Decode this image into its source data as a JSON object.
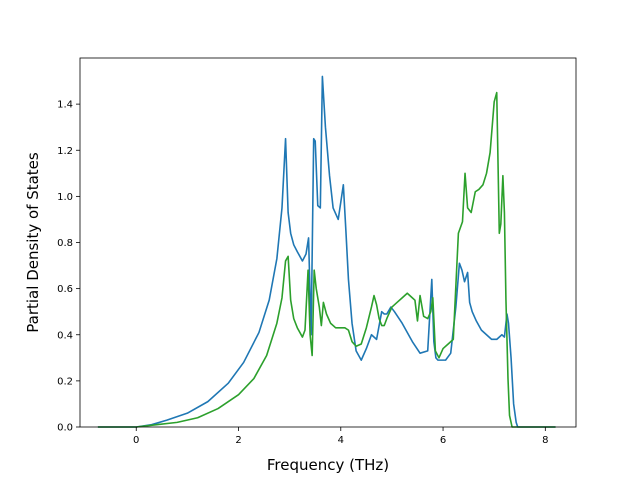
{
  "chart_data": {
    "type": "line",
    "title": "",
    "xlabel": "Frequency (THz)",
    "ylabel": "Partial Density of States",
    "xlim": [
      -1.1,
      8.6
    ],
    "ylim": [
      0,
      1.6
    ],
    "xticks": [
      0,
      2,
      4,
      6,
      8
    ],
    "xtick_labels": [
      "0",
      "2",
      "4",
      "6",
      "8"
    ],
    "yticks": [
      0.0,
      0.2,
      0.4,
      0.6,
      0.8,
      1.0,
      1.2,
      1.4
    ],
    "ytick_labels": [
      "0.0",
      "0.2",
      "0.4",
      "0.6",
      "0.8",
      "1.0",
      "1.2",
      "1.4"
    ],
    "grid": false,
    "legend": "none",
    "series": [
      {
        "color": "#1f77b4",
        "x": [
          -0.75,
          0.0,
          0.3,
          0.6,
          1.0,
          1.4,
          1.8,
          2.1,
          2.4,
          2.6,
          2.75,
          2.85,
          2.92,
          2.97,
          3.02,
          3.08,
          3.15,
          3.25,
          3.32,
          3.37,
          3.42,
          3.47,
          3.5,
          3.55,
          3.6,
          3.64,
          3.7,
          3.78,
          3.85,
          3.95,
          4.05,
          4.1,
          4.15,
          4.22,
          4.3,
          4.4,
          4.5,
          4.6,
          4.7,
          4.8,
          4.85,
          4.9,
          4.98,
          5.05,
          5.2,
          5.4,
          5.55,
          5.7,
          5.78,
          5.82,
          5.86,
          5.9,
          5.95,
          6.05,
          6.15,
          6.25,
          6.32,
          6.37,
          6.42,
          6.48,
          6.52,
          6.57,
          6.65,
          6.75,
          6.85,
          6.95,
          7.05,
          7.15,
          7.2,
          7.25,
          7.28,
          7.33,
          7.38,
          7.43,
          7.46,
          7.5,
          8.2
        ],
        "y": [
          0.0,
          0.0,
          0.01,
          0.03,
          0.06,
          0.11,
          0.19,
          0.28,
          0.41,
          0.55,
          0.73,
          0.95,
          1.25,
          0.93,
          0.84,
          0.79,
          0.76,
          0.72,
          0.75,
          0.82,
          0.4,
          1.25,
          1.24,
          0.96,
          0.95,
          1.52,
          1.3,
          1.09,
          0.95,
          0.9,
          1.05,
          0.85,
          0.64,
          0.45,
          0.33,
          0.29,
          0.34,
          0.4,
          0.38,
          0.5,
          0.49,
          0.49,
          0.52,
          0.5,
          0.45,
          0.37,
          0.32,
          0.33,
          0.64,
          0.37,
          0.3,
          0.29,
          0.29,
          0.29,
          0.32,
          0.52,
          0.71,
          0.68,
          0.63,
          0.67,
          0.54,
          0.5,
          0.46,
          0.42,
          0.4,
          0.38,
          0.38,
          0.4,
          0.39,
          0.49,
          0.45,
          0.3,
          0.1,
          0.02,
          0.0,
          0.0,
          0.0
        ]
      },
      {
        "color": "#2ca02c",
        "x": [
          -0.75,
          0.0,
          0.4,
          0.8,
          1.2,
          1.6,
          2.0,
          2.3,
          2.55,
          2.75,
          2.85,
          2.92,
          2.97,
          3.02,
          3.08,
          3.15,
          3.25,
          3.3,
          3.36,
          3.4,
          3.44,
          3.48,
          3.52,
          3.58,
          3.62,
          3.66,
          3.72,
          3.8,
          3.9,
          4.0,
          4.08,
          4.15,
          4.22,
          4.3,
          4.4,
          4.5,
          4.6,
          4.65,
          4.7,
          4.75,
          4.8,
          4.85,
          4.9,
          5.0,
          5.1,
          5.2,
          5.3,
          5.4,
          5.45,
          5.5,
          5.55,
          5.62,
          5.7,
          5.76,
          5.8,
          5.85,
          5.92,
          6.0,
          6.1,
          6.2,
          6.3,
          6.38,
          6.43,
          6.48,
          6.55,
          6.63,
          6.7,
          6.78,
          6.85,
          6.92,
          7.0,
          7.05,
          7.1,
          7.13,
          7.17,
          7.2,
          7.23,
          7.27,
          7.3,
          7.35,
          7.4,
          7.43,
          7.47,
          7.5,
          8.2
        ],
        "y": [
          0.0,
          0.0,
          0.01,
          0.02,
          0.04,
          0.08,
          0.14,
          0.21,
          0.31,
          0.45,
          0.56,
          0.72,
          0.74,
          0.55,
          0.47,
          0.43,
          0.39,
          0.42,
          0.68,
          0.4,
          0.31,
          0.68,
          0.6,
          0.52,
          0.44,
          0.54,
          0.49,
          0.45,
          0.43,
          0.43,
          0.43,
          0.42,
          0.37,
          0.35,
          0.36,
          0.43,
          0.52,
          0.57,
          0.53,
          0.47,
          0.44,
          0.44,
          0.47,
          0.52,
          0.54,
          0.56,
          0.58,
          0.56,
          0.55,
          0.46,
          0.57,
          0.48,
          0.47,
          0.5,
          0.56,
          0.33,
          0.3,
          0.34,
          0.36,
          0.38,
          0.84,
          0.89,
          1.1,
          0.95,
          0.93,
          1.02,
          1.03,
          1.05,
          1.1,
          1.19,
          1.41,
          1.45,
          0.84,
          0.88,
          1.09,
          0.93,
          0.55,
          0.21,
          0.05,
          0.0,
          0.0,
          0.0,
          0.0,
          0.0,
          0.0
        ]
      }
    ]
  }
}
